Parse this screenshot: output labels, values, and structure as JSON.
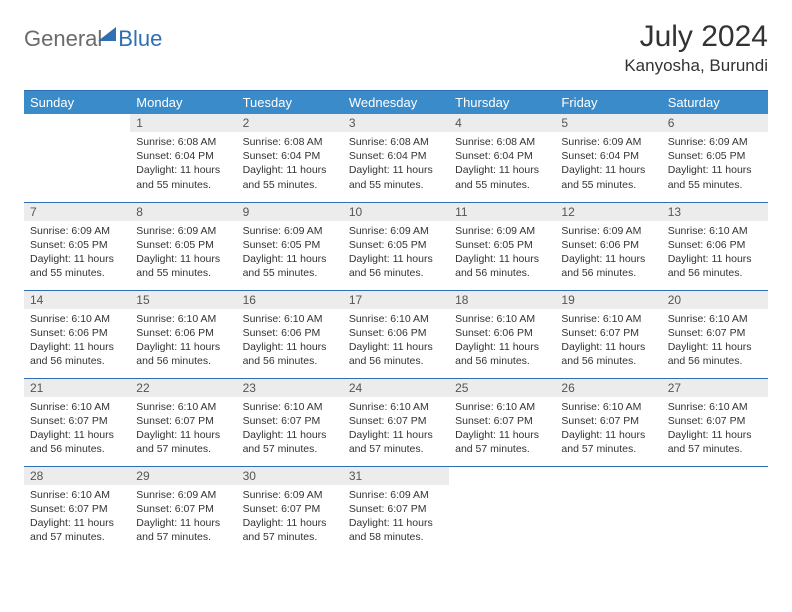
{
  "logo": {
    "part1": "General",
    "part2": "Blue"
  },
  "title": "July 2024",
  "location": "Kanyosha, Burundi",
  "colors": {
    "header_bg": "#3a8bc9",
    "header_border": "#2f6fb3",
    "daynum_bg": "#ececec",
    "text": "#333333",
    "logo_gray": "#6b6b6b",
    "logo_blue": "#2f6fb3"
  },
  "weekdays": [
    "Sunday",
    "Monday",
    "Tuesday",
    "Wednesday",
    "Thursday",
    "Friday",
    "Saturday"
  ],
  "weeks": [
    [
      {
        "n": "",
        "sr": "",
        "ss": "",
        "dl": "",
        "empty": true
      },
      {
        "n": "1",
        "sr": "Sunrise: 6:08 AM",
        "ss": "Sunset: 6:04 PM",
        "dl": "Daylight: 11 hours and 55 minutes."
      },
      {
        "n": "2",
        "sr": "Sunrise: 6:08 AM",
        "ss": "Sunset: 6:04 PM",
        "dl": "Daylight: 11 hours and 55 minutes."
      },
      {
        "n": "3",
        "sr": "Sunrise: 6:08 AM",
        "ss": "Sunset: 6:04 PM",
        "dl": "Daylight: 11 hours and 55 minutes."
      },
      {
        "n": "4",
        "sr": "Sunrise: 6:08 AM",
        "ss": "Sunset: 6:04 PM",
        "dl": "Daylight: 11 hours and 55 minutes."
      },
      {
        "n": "5",
        "sr": "Sunrise: 6:09 AM",
        "ss": "Sunset: 6:04 PM",
        "dl": "Daylight: 11 hours and 55 minutes."
      },
      {
        "n": "6",
        "sr": "Sunrise: 6:09 AM",
        "ss": "Sunset: 6:05 PM",
        "dl": "Daylight: 11 hours and 55 minutes."
      }
    ],
    [
      {
        "n": "7",
        "sr": "Sunrise: 6:09 AM",
        "ss": "Sunset: 6:05 PM",
        "dl": "Daylight: 11 hours and 55 minutes."
      },
      {
        "n": "8",
        "sr": "Sunrise: 6:09 AM",
        "ss": "Sunset: 6:05 PM",
        "dl": "Daylight: 11 hours and 55 minutes."
      },
      {
        "n": "9",
        "sr": "Sunrise: 6:09 AM",
        "ss": "Sunset: 6:05 PM",
        "dl": "Daylight: 11 hours and 55 minutes."
      },
      {
        "n": "10",
        "sr": "Sunrise: 6:09 AM",
        "ss": "Sunset: 6:05 PM",
        "dl": "Daylight: 11 hours and 56 minutes."
      },
      {
        "n": "11",
        "sr": "Sunrise: 6:09 AM",
        "ss": "Sunset: 6:05 PM",
        "dl": "Daylight: 11 hours and 56 minutes."
      },
      {
        "n": "12",
        "sr": "Sunrise: 6:09 AM",
        "ss": "Sunset: 6:06 PM",
        "dl": "Daylight: 11 hours and 56 minutes."
      },
      {
        "n": "13",
        "sr": "Sunrise: 6:10 AM",
        "ss": "Sunset: 6:06 PM",
        "dl": "Daylight: 11 hours and 56 minutes."
      }
    ],
    [
      {
        "n": "14",
        "sr": "Sunrise: 6:10 AM",
        "ss": "Sunset: 6:06 PM",
        "dl": "Daylight: 11 hours and 56 minutes."
      },
      {
        "n": "15",
        "sr": "Sunrise: 6:10 AM",
        "ss": "Sunset: 6:06 PM",
        "dl": "Daylight: 11 hours and 56 minutes."
      },
      {
        "n": "16",
        "sr": "Sunrise: 6:10 AM",
        "ss": "Sunset: 6:06 PM",
        "dl": "Daylight: 11 hours and 56 minutes."
      },
      {
        "n": "17",
        "sr": "Sunrise: 6:10 AM",
        "ss": "Sunset: 6:06 PM",
        "dl": "Daylight: 11 hours and 56 minutes."
      },
      {
        "n": "18",
        "sr": "Sunrise: 6:10 AM",
        "ss": "Sunset: 6:06 PM",
        "dl": "Daylight: 11 hours and 56 minutes."
      },
      {
        "n": "19",
        "sr": "Sunrise: 6:10 AM",
        "ss": "Sunset: 6:07 PM",
        "dl": "Daylight: 11 hours and 56 minutes."
      },
      {
        "n": "20",
        "sr": "Sunrise: 6:10 AM",
        "ss": "Sunset: 6:07 PM",
        "dl": "Daylight: 11 hours and 56 minutes."
      }
    ],
    [
      {
        "n": "21",
        "sr": "Sunrise: 6:10 AM",
        "ss": "Sunset: 6:07 PM",
        "dl": "Daylight: 11 hours and 56 minutes."
      },
      {
        "n": "22",
        "sr": "Sunrise: 6:10 AM",
        "ss": "Sunset: 6:07 PM",
        "dl": "Daylight: 11 hours and 57 minutes."
      },
      {
        "n": "23",
        "sr": "Sunrise: 6:10 AM",
        "ss": "Sunset: 6:07 PM",
        "dl": "Daylight: 11 hours and 57 minutes."
      },
      {
        "n": "24",
        "sr": "Sunrise: 6:10 AM",
        "ss": "Sunset: 6:07 PM",
        "dl": "Daylight: 11 hours and 57 minutes."
      },
      {
        "n": "25",
        "sr": "Sunrise: 6:10 AM",
        "ss": "Sunset: 6:07 PM",
        "dl": "Daylight: 11 hours and 57 minutes."
      },
      {
        "n": "26",
        "sr": "Sunrise: 6:10 AM",
        "ss": "Sunset: 6:07 PM",
        "dl": "Daylight: 11 hours and 57 minutes."
      },
      {
        "n": "27",
        "sr": "Sunrise: 6:10 AM",
        "ss": "Sunset: 6:07 PM",
        "dl": "Daylight: 11 hours and 57 minutes."
      }
    ],
    [
      {
        "n": "28",
        "sr": "Sunrise: 6:10 AM",
        "ss": "Sunset: 6:07 PM",
        "dl": "Daylight: 11 hours and 57 minutes."
      },
      {
        "n": "29",
        "sr": "Sunrise: 6:09 AM",
        "ss": "Sunset: 6:07 PM",
        "dl": "Daylight: 11 hours and 57 minutes."
      },
      {
        "n": "30",
        "sr": "Sunrise: 6:09 AM",
        "ss": "Sunset: 6:07 PM",
        "dl": "Daylight: 11 hours and 57 minutes."
      },
      {
        "n": "31",
        "sr": "Sunrise: 6:09 AM",
        "ss": "Sunset: 6:07 PM",
        "dl": "Daylight: 11 hours and 58 minutes."
      },
      {
        "n": "",
        "sr": "",
        "ss": "",
        "dl": "",
        "empty": true
      },
      {
        "n": "",
        "sr": "",
        "ss": "",
        "dl": "",
        "empty": true
      },
      {
        "n": "",
        "sr": "",
        "ss": "",
        "dl": "",
        "empty": true
      }
    ]
  ]
}
